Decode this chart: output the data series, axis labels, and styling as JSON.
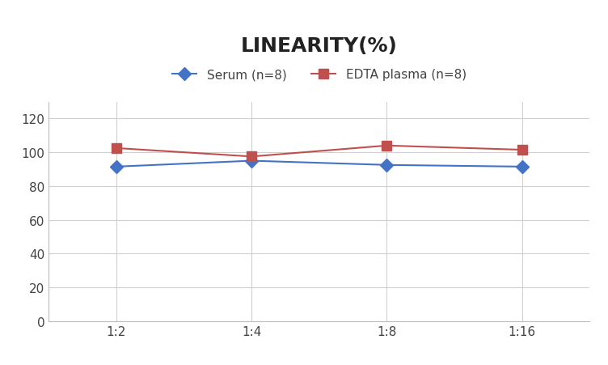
{
  "title": "LINEARITY(%)",
  "title_fontsize": 18,
  "title_fontweight": "bold",
  "x_labels": [
    "1:2",
    "1:4",
    "1:8",
    "1:16"
  ],
  "x_positions": [
    0,
    1,
    2,
    3
  ],
  "serum_values": [
    91.5,
    95.0,
    92.5,
    91.5
  ],
  "edta_values": [
    102.5,
    97.5,
    104.0,
    101.5
  ],
  "serum_color": "#4472C4",
  "edta_color": "#C0504D",
  "serum_label": "Serum (n=8)",
  "edta_label": "EDTA plasma (n=8)",
  "ylim": [
    0,
    130
  ],
  "yticks": [
    0,
    20,
    40,
    60,
    80,
    100,
    120
  ],
  "grid_color": "#D0D0D0",
  "background_color": "#FFFFFF",
  "legend_fontsize": 11,
  "axis_fontsize": 11,
  "marker_size_serum": 8,
  "marker_size_edta": 8,
  "line_width": 1.5,
  "tick_label_color": "#444444"
}
